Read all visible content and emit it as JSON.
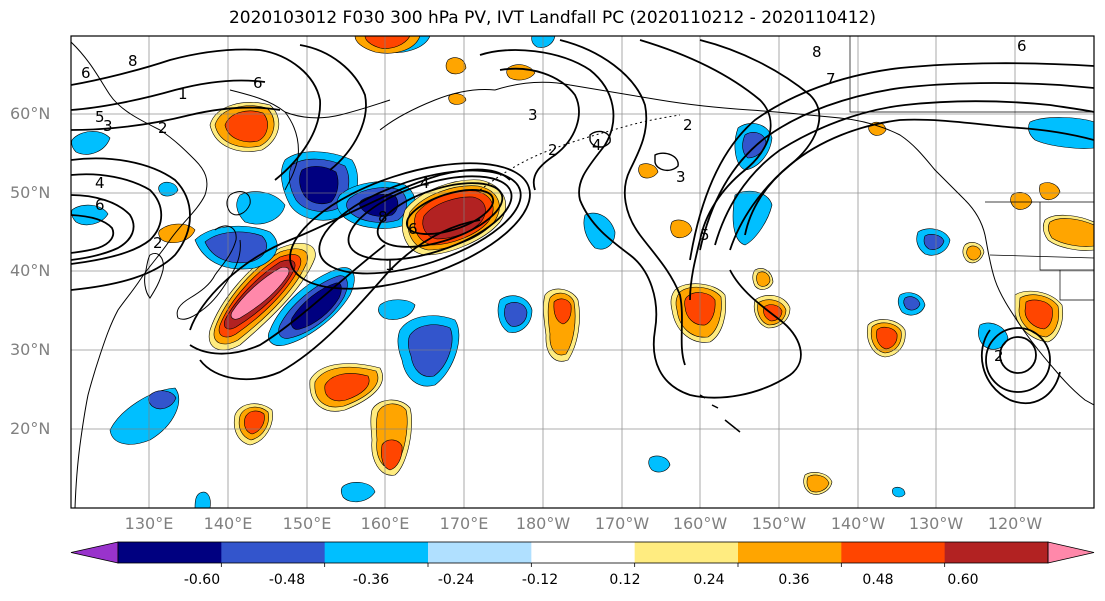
{
  "title": "2020103012 F030 300 hPa PV, IVT Landfall PC (2020110212 - 2020110412)",
  "lat_labels": [
    "60°N",
    "50°N",
    "40°N",
    "30°N",
    "20°N"
  ],
  "lon_labels": [
    "130°E",
    "140°E",
    "150°E",
    "160°E",
    "170°E",
    "180°W",
    "170°W",
    "160°W",
    "150°W",
    "140°W",
    "130°W",
    "120°W"
  ],
  "colorbar": {
    "colors": [
      "#9933cc",
      "#000080",
      "#3355cc",
      "#00bfff",
      "#b0e0ff",
      "#ffffff",
      "#ffec80",
      "#ffa500",
      "#ff4500",
      "#b22222",
      "#ff88aa"
    ],
    "tick_labels": [
      "-0.60",
      "-0.48",
      "-0.36",
      "-0.24",
      "-0.12",
      "0.12",
      "0.24",
      "0.36",
      "0.48",
      "0.60"
    ]
  },
  "contour_labels": [
    "8",
    "6",
    "6",
    "5",
    "3",
    "2",
    "4",
    "6",
    "2",
    "4",
    "8",
    "3",
    "6",
    "2",
    "4",
    "2",
    "3",
    "5",
    "8",
    "7",
    "6",
    "1",
    "2",
    "1"
  ]
}
